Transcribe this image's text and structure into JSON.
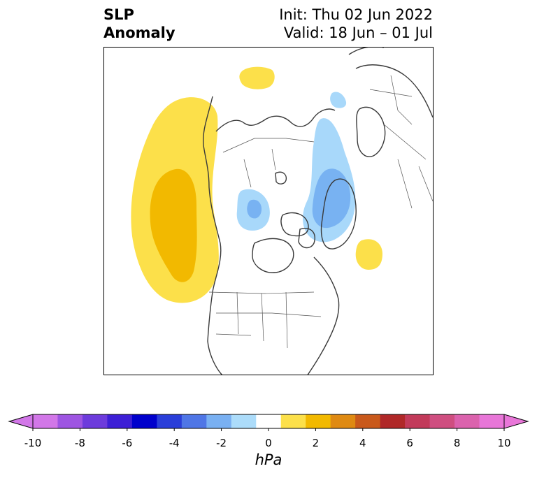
{
  "title": {
    "left_line1": "SLP",
    "left_line2": "Anomaly",
    "init": "Init: Thu 02 Jun 2022",
    "valid": "Valid: 18 Jun – 01 Jul"
  },
  "map": {
    "projection": "polar-stereographic-north",
    "anomaly_regions": [
      {
        "region": "northeast-pacific-alaska",
        "level": "+1 to +2 hPa",
        "color": "#fce04a"
      },
      {
        "region": "northeast-pacific-core",
        "level": "+2 to +3 hPa",
        "color": "#f2b900"
      },
      {
        "region": "scandinavia-northern-russia",
        "level": "+1 to +2 hPa",
        "color": "#fce04a"
      },
      {
        "region": "greenland-northeast-canada",
        "level": "+1 to +2 hPa",
        "color": "#fce04a"
      },
      {
        "region": "siberian-arctic",
        "level": "-1 to -2 hPa",
        "color": "#a8d8fa"
      },
      {
        "region": "siberian-arctic-core",
        "level": "-2 to -3 hPa",
        "color": "#78b2f2"
      },
      {
        "region": "laptev-east-siberian-sea",
        "level": "-1 to -2 hPa",
        "color": "#a8d8fa"
      },
      {
        "region": "central-arctic-core",
        "level": "-2 to -3 hPa",
        "color": "#78b2f2"
      }
    ]
  },
  "colorbar": {
    "units": "hPa",
    "colors": [
      "#d277e8",
      "#9e55e2",
      "#6d3bdc",
      "#3d1fd6",
      "#0000cc",
      "#2a3ed9",
      "#4f76e6",
      "#79b0f2",
      "#acdcfa",
      "#ffffff",
      "#fce04a",
      "#f2b900",
      "#df8a12",
      "#c9591b",
      "#b02828",
      "#c23a5a",
      "#cf4e80",
      "#db62ad",
      "#e876d8"
    ],
    "extend_min_color": "#d277e8",
    "extend_max_color": "#e876d8",
    "ticks": [
      "-10",
      "-8",
      "-6",
      "-4",
      "-2",
      "0",
      "2",
      "4",
      "6",
      "8",
      "10"
    ]
  }
}
